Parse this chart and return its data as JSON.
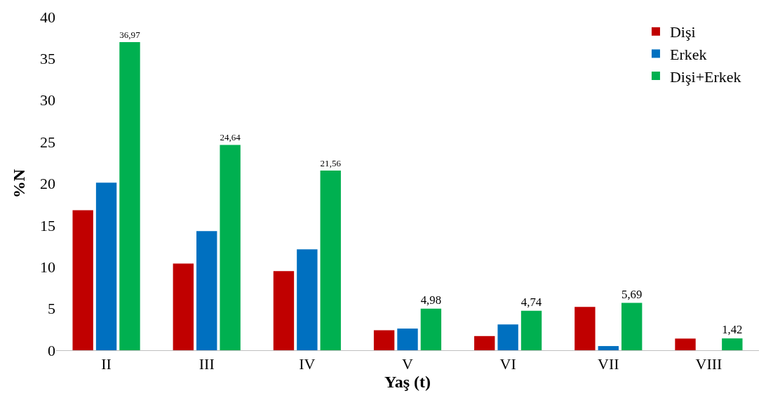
{
  "chart_data": {
    "type": "bar",
    "xlabel": "Yaş (t)",
    "ylabel": "%N",
    "categories": [
      "II",
      "III",
      "IV",
      "V",
      "VI",
      "VII",
      "VIII"
    ],
    "series": [
      {
        "name": "Dişi",
        "color": "#c00000",
        "values": [
          16.8,
          10.4,
          9.5,
          2.4,
          1.7,
          5.2,
          1.4
        ]
      },
      {
        "name": "Erkek",
        "color": "#0070c0",
        "values": [
          20.1,
          14.3,
          12.1,
          2.6,
          3.1,
          0.5,
          0
        ]
      },
      {
        "name": "Dişi+Erkek",
        "color": "#00b050",
        "values": [
          36.97,
          24.64,
          21.56,
          4.98,
          4.74,
          5.69,
          1.42
        ],
        "value_labels": [
          "36,97",
          "24,64",
          "21,56",
          "4,98",
          "4,74",
          "5,69",
          "1,42"
        ]
      }
    ],
    "ylim": [
      0,
      40
    ],
    "yticks": [
      0,
      5,
      10,
      15,
      20,
      25,
      30,
      35,
      40
    ],
    "grid": false,
    "legend": "top right"
  }
}
